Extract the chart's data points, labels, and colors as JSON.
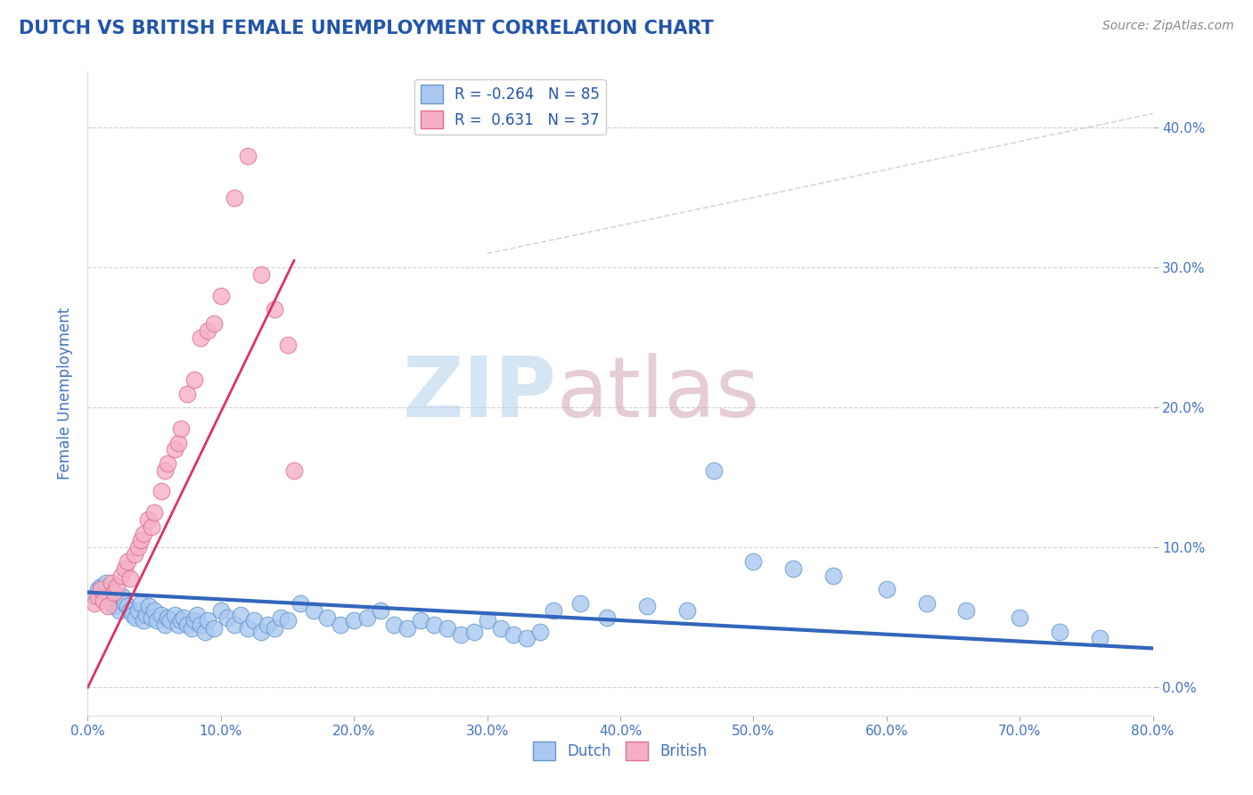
{
  "title": "DUTCH VS BRITISH FEMALE UNEMPLOYMENT CORRELATION CHART",
  "source": "Source: ZipAtlas.com",
  "ylabel": "Female Unemployment",
  "xlim": [
    0.0,
    0.8
  ],
  "ylim": [
    -0.02,
    0.44
  ],
  "xticks": [
    0.0,
    0.1,
    0.2,
    0.3,
    0.4,
    0.5,
    0.6,
    0.7,
    0.8
  ],
  "yticks": [
    0.0,
    0.1,
    0.2,
    0.3,
    0.4
  ],
  "ytick_labels": [
    "0.0%",
    "10.0%",
    "20.0%",
    "30.0%",
    "40.0%"
  ],
  "xtick_labels": [
    "0.0%",
    "10.0%",
    "20.0%",
    "30.0%",
    "40.0%",
    "50.0%",
    "60.0%",
    "70.0%",
    "80.0%"
  ],
  "dutch_color": "#aac8f0",
  "british_color": "#f5b0c5",
  "dutch_edge_color": "#6699cc",
  "british_edge_color": "#e07090",
  "trend_dutch_color": "#3366bb",
  "trend_british_color": "#dd3366",
  "title_color": "#2255aa",
  "axis_color": "#4472c4",
  "legend_R_color": "#2255aa",
  "R_dutch": -0.264,
  "N_dutch": 85,
  "R_british": 0.631,
  "N_british": 37,
  "background_color": "#ffffff",
  "dutch_trend_x": [
    0.0,
    0.8
  ],
  "dutch_trend_y": [
    0.068,
    0.028
  ],
  "british_trend_x": [
    0.0,
    0.155
  ],
  "british_trend_y": [
    0.0,
    0.305
  ],
  "dutch_scatter_x": [
    0.005,
    0.008,
    0.01,
    0.012,
    0.014,
    0.016,
    0.018,
    0.02,
    0.022,
    0.024,
    0.026,
    0.028,
    0.03,
    0.032,
    0.034,
    0.036,
    0.038,
    0.04,
    0.042,
    0.044,
    0.046,
    0.048,
    0.05,
    0.052,
    0.055,
    0.058,
    0.06,
    0.062,
    0.065,
    0.068,
    0.07,
    0.072,
    0.075,
    0.078,
    0.08,
    0.082,
    0.085,
    0.088,
    0.09,
    0.095,
    0.1,
    0.105,
    0.11,
    0.115,
    0.12,
    0.125,
    0.13,
    0.135,
    0.14,
    0.145,
    0.15,
    0.16,
    0.17,
    0.18,
    0.19,
    0.2,
    0.21,
    0.22,
    0.23,
    0.24,
    0.25,
    0.26,
    0.27,
    0.28,
    0.29,
    0.3,
    0.31,
    0.32,
    0.33,
    0.34,
    0.35,
    0.37,
    0.39,
    0.42,
    0.45,
    0.47,
    0.5,
    0.53,
    0.56,
    0.6,
    0.63,
    0.66,
    0.7,
    0.73,
    0.76
  ],
  "dutch_scatter_y": [
    0.065,
    0.07,
    0.072,
    0.068,
    0.075,
    0.063,
    0.06,
    0.058,
    0.062,
    0.055,
    0.065,
    0.06,
    0.058,
    0.055,
    0.052,
    0.05,
    0.055,
    0.06,
    0.048,
    0.052,
    0.058,
    0.05,
    0.055,
    0.048,
    0.052,
    0.045,
    0.05,
    0.048,
    0.052,
    0.045,
    0.048,
    0.05,
    0.045,
    0.042,
    0.048,
    0.052,
    0.045,
    0.04,
    0.048,
    0.042,
    0.055,
    0.05,
    0.045,
    0.052,
    0.042,
    0.048,
    0.04,
    0.045,
    0.042,
    0.05,
    0.048,
    0.06,
    0.055,
    0.05,
    0.045,
    0.048,
    0.05,
    0.055,
    0.045,
    0.042,
    0.048,
    0.045,
    0.042,
    0.038,
    0.04,
    0.048,
    0.042,
    0.038,
    0.035,
    0.04,
    0.055,
    0.06,
    0.05,
    0.058,
    0.055,
    0.155,
    0.09,
    0.085,
    0.08,
    0.07,
    0.06,
    0.055,
    0.05,
    0.04,
    0.035
  ],
  "british_scatter_x": [
    0.005,
    0.008,
    0.01,
    0.012,
    0.015,
    0.018,
    0.02,
    0.022,
    0.025,
    0.028,
    0.03,
    0.032,
    0.035,
    0.038,
    0.04,
    0.042,
    0.045,
    0.048,
    0.05,
    0.055,
    0.058,
    0.06,
    0.065,
    0.068,
    0.07,
    0.075,
    0.08,
    0.085,
    0.09,
    0.095,
    0.1,
    0.11,
    0.12,
    0.13,
    0.14,
    0.15,
    0.155
  ],
  "british_scatter_y": [
    0.06,
    0.065,
    0.07,
    0.062,
    0.058,
    0.075,
    0.068,
    0.072,
    0.08,
    0.085,
    0.09,
    0.078,
    0.095,
    0.1,
    0.105,
    0.11,
    0.12,
    0.115,
    0.125,
    0.14,
    0.155,
    0.16,
    0.17,
    0.175,
    0.185,
    0.21,
    0.22,
    0.25,
    0.255,
    0.26,
    0.28,
    0.35,
    0.38,
    0.295,
    0.27,
    0.245,
    0.155
  ]
}
